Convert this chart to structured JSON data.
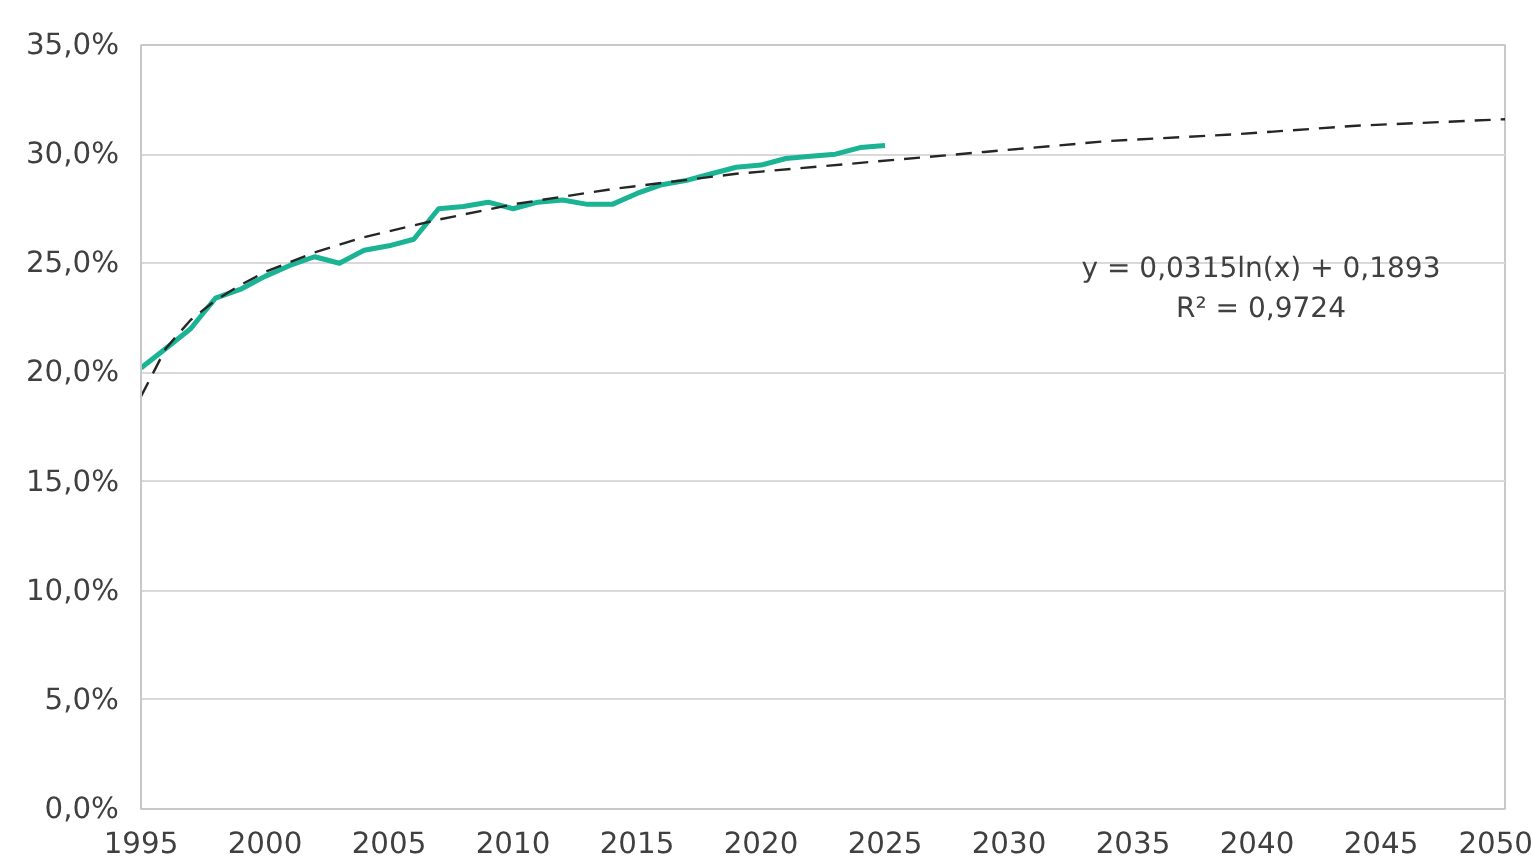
{
  "chart_data": {
    "type": "line",
    "x": [
      1995,
      1996,
      1997,
      1998,
      1999,
      2000,
      2001,
      2002,
      2003,
      2004,
      2005,
      2006,
      2007,
      2008,
      2009,
      2010,
      2011,
      2012,
      2013,
      2014,
      2015,
      2016,
      2017,
      2018,
      2019,
      2020,
      2021,
      2022,
      2023,
      2024,
      2025
    ],
    "series": [
      {
        "color": "#1ab394",
        "line_style": "solid",
        "values": [
          20.2,
          21.1,
          22.0,
          23.4,
          23.8,
          24.4,
          24.9,
          25.3,
          25.0,
          25.6,
          25.8,
          26.1,
          27.5,
          27.6,
          27.8,
          27.5,
          27.8,
          27.9,
          27.7,
          27.7,
          28.2,
          28.6,
          28.8,
          29.1,
          29.4,
          29.5,
          29.8,
          29.9,
          30.0,
          30.3,
          30.4
        ]
      },
      {
        "type": "line",
        "color": "#262626",
        "line_style": "dashed",
        "x": [
          1995,
          1996,
          1997,
          1998,
          1999,
          2000,
          2002,
          2004,
          2007,
          2010,
          2014,
          2019,
          2024,
          2029,
          2034,
          2039,
          2044,
          2050
        ],
        "values": [
          18.9,
          21.1,
          22.4,
          23.3,
          24.0,
          24.6,
          25.5,
          26.2,
          27.0,
          27.7,
          28.4,
          29.1,
          29.6,
          30.1,
          30.6,
          30.9,
          31.3,
          31.6
        ]
      }
    ],
    "xlim": [
      1995,
      2050
    ],
    "xticks": [
      1995,
      2000,
      2005,
      2010,
      2015,
      2020,
      2025,
      2030,
      2035,
      2040,
      2045,
      2050
    ],
    "ylim": [
      0,
      35
    ],
    "yticks": [
      {
        "value": 0,
        "label": "0,0%"
      },
      {
        "value": 5,
        "label": "5,0%"
      },
      {
        "value": 10,
        "label": "10,0%"
      },
      {
        "value": 15,
        "label": "15,0%"
      },
      {
        "value": 20,
        "label": "20,0%"
      },
      {
        "value": 25,
        "label": "25,0%"
      },
      {
        "value": 30,
        "label": "30,0%"
      },
      {
        "value": 35,
        "label": "35,0%"
      }
    ],
    "grid": "y",
    "marker": "none",
    "annotations": [
      "y = 0,0315ln(x) + 0,1893",
      "R² = 0,9724"
    ]
  }
}
